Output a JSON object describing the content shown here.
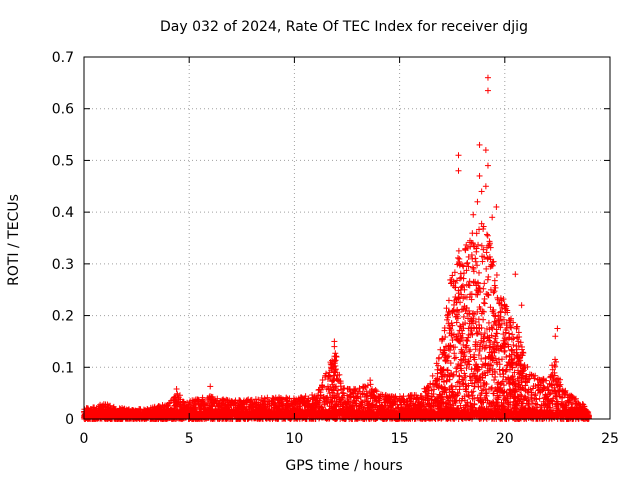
{
  "chart_data": {
    "type": "scatter",
    "title": "Day 032 of 2024, Rate Of TEC Index for receiver djig",
    "xlabel": "GPS time / hours",
    "ylabel": "ROTI / TECUs",
    "xlim": [
      0,
      25
    ],
    "ylim": [
      0,
      0.7
    ],
    "xticks": [
      0,
      5,
      10,
      15,
      20,
      25
    ],
    "yticks": [
      0,
      0.1,
      0.2,
      0.3,
      0.4,
      0.5,
      0.6,
      0.7
    ],
    "grid": true,
    "marker": "+",
    "marker_color": "#ff0000",
    "data_x_range": [
      0,
      24
    ],
    "series": [
      {
        "name": "ROTI",
        "envelope": {
          "x": [
            0,
            1,
            2,
            3,
            4,
            4.4,
            5,
            6,
            7,
            8,
            9,
            10,
            11,
            11.6,
            11.9,
            12.3,
            13,
            13.6,
            14,
            15,
            16,
            16.5,
            17,
            17.5,
            17.8,
            18.2,
            18.6,
            18.9,
            19.2,
            19.5,
            19.8,
            20.2,
            20.6,
            21,
            21.5,
            22,
            22.4,
            22.8,
            23.2,
            24
          ],
          "y": [
            0.02,
            0.03,
            0.02,
            0.02,
            0.03,
            0.05,
            0.035,
            0.045,
            0.035,
            0.04,
            0.045,
            0.04,
            0.05,
            0.1,
            0.14,
            0.06,
            0.06,
            0.07,
            0.05,
            0.045,
            0.05,
            0.08,
            0.15,
            0.3,
            0.33,
            0.34,
            0.37,
            0.38,
            0.36,
            0.3,
            0.26,
            0.2,
            0.18,
            0.12,
            0.08,
            0.08,
            0.12,
            0.06,
            0.045,
            0.02
          ]
        },
        "outliers": [
          {
            "x": 19.2,
            "y": 0.66
          },
          {
            "x": 19.2,
            "y": 0.635
          },
          {
            "x": 18.8,
            "y": 0.53
          },
          {
            "x": 19.1,
            "y": 0.52
          },
          {
            "x": 17.8,
            "y": 0.51
          },
          {
            "x": 17.8,
            "y": 0.48
          },
          {
            "x": 19.2,
            "y": 0.49
          },
          {
            "x": 18.8,
            "y": 0.47
          },
          {
            "x": 19.1,
            "y": 0.45
          },
          {
            "x": 18.9,
            "y": 0.44
          },
          {
            "x": 18.7,
            "y": 0.42
          },
          {
            "x": 19.6,
            "y": 0.41
          },
          {
            "x": 18.5,
            "y": 0.395
          },
          {
            "x": 19.4,
            "y": 0.39
          },
          {
            "x": 20.5,
            "y": 0.28
          },
          {
            "x": 20.8,
            "y": 0.22
          },
          {
            "x": 22.4,
            "y": 0.16
          },
          {
            "x": 22.5,
            "y": 0.175
          },
          {
            "x": 11.9,
            "y": 0.15
          },
          {
            "x": 11.9,
            "y": 0.14
          },
          {
            "x": 12.0,
            "y": 0.12
          },
          {
            "x": 6.0,
            "y": 0.063
          },
          {
            "x": 4.4,
            "y": 0.058
          },
          {
            "x": 13.6,
            "y": 0.075
          }
        ]
      }
    ]
  }
}
